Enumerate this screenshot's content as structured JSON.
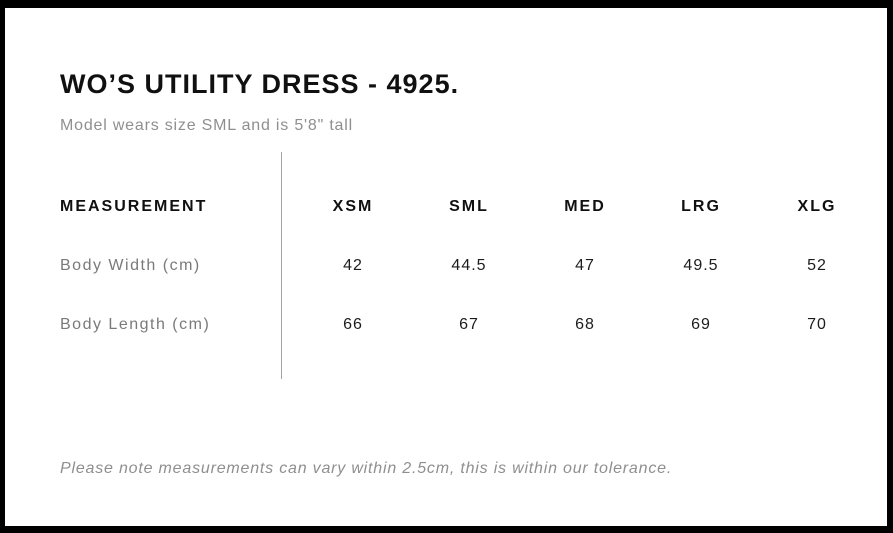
{
  "page": {
    "title": "WO’S UTILITY DRESS - 4925.",
    "subtitle": "Model wears size SML and is 5'8\" tall",
    "note": "Please note measurements can vary within 2.5cm, this is within our tolerance."
  },
  "size_chart": {
    "measurement_header": "MEASUREMENT",
    "size_headers": [
      "XSM",
      "SML",
      "MED",
      "LRG",
      "XLG"
    ],
    "rows": [
      {
        "label": "Body Width (cm)",
        "values": [
          "42",
          "44.5",
          "47",
          "49.5",
          "52"
        ]
      },
      {
        "label": "Body Length (cm)",
        "values": [
          "66",
          "67",
          "68",
          "69",
          "70"
        ]
      }
    ]
  },
  "colors": {
    "frame": "#000000",
    "text_primary": "#101010",
    "text_muted": "#8f8f8f",
    "divider": "#a3a3a3"
  }
}
